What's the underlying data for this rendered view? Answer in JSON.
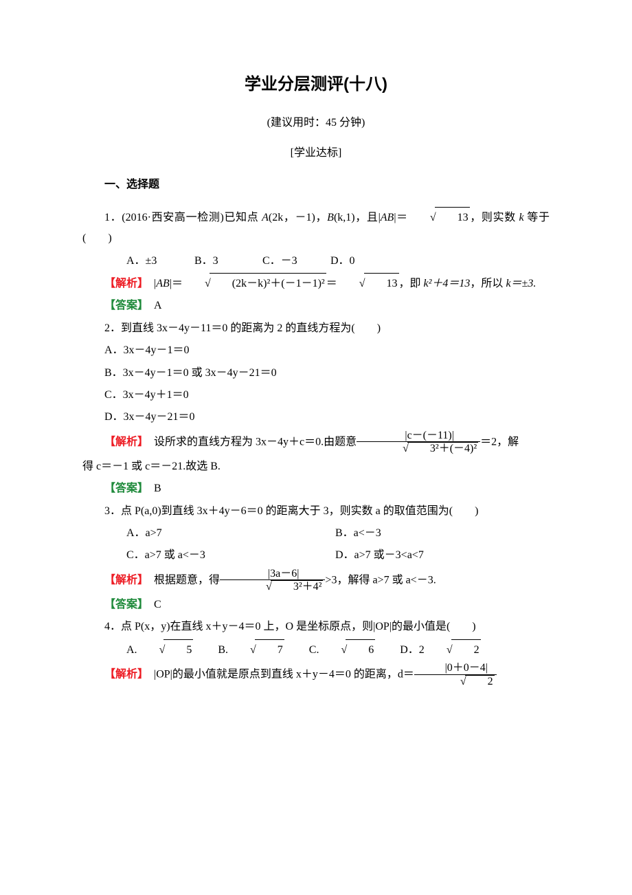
{
  "doc": {
    "title": "学业分层测评(十八)",
    "time_note": "(建议用时：45 分钟)",
    "section_bracket": "[学业达标]",
    "section_heading": "一、选择题",
    "colors": {
      "text": "#000000",
      "analyze": "#ed1c24",
      "answer": "#1f8a3b",
      "background": "#ffffff"
    },
    "labels": {
      "analyze": "【解析】",
      "answer": "【答案】"
    },
    "q1": {
      "stem_prefix": "1．(2016·西安高一检测)已知点 ",
      "pointA_label": "A",
      "pointA_coords": "(2k，－1)",
      "sep1": "，",
      "pointB_label": "B",
      "pointB_coords": "(k,1)",
      "sep2": "，且|",
      "AB": "AB",
      "after_ab": "|＝",
      "sqrt13": "13",
      "tail": "，则实数 ",
      "k": "k",
      "stem_suffix": " 等于(　　)",
      "optA": "A．±3",
      "optB": "B．3",
      "optC": "C．－3",
      "optD": "D．0",
      "analysis_pre": "　|",
      "analysis_mid1": "|＝",
      "rad_expr": "(2k－k)²＋(－1－1)²",
      "eq": "＝",
      "post_sqrt": "，即 ",
      "k2plus4": "k²＋4＝13",
      "so": "，所以 ",
      "keq": "k＝±3.",
      "answer": "　A"
    },
    "q2": {
      "stem": "2．到直线 3x－4y－11＝0 的距离为 2 的直线方程为(　　)",
      "optA": "A．3x－4y－1＝0",
      "optB": "B．3x－4y－1＝0 或 3x－4y－21＝0",
      "optC": "C．3x－4y＋1＝0",
      "optD": "D．3x－4y－21＝0",
      "ana_p1": "　设所求的直线方程为 3x－4y＋c＝0.由题意",
      "frac_num": "|c－(－11)|",
      "frac_den_rad": "3²＋(－4)²",
      "ana_p2": "＝2，解",
      "ana_line2": "得 c＝－1 或 c＝－21.故选 B.",
      "answer": "　B"
    },
    "q3": {
      "stem": "3．点 P(a,0)到直线 3x＋4y－6＝0 的距离大于 3，则实数 a 的取值范围为(　　)",
      "optA": "A．a>7",
      "optB": "B．a<－3",
      "optC": "C．a>7 或 a<－3",
      "optD": "D．a>7 或－3<a<7",
      "ana_p1": "　根据题意，得",
      "frac_num": "|3a－6|",
      "frac_den_rad": "3²＋4²",
      "ana_p2": ">3，解得 a>7 或 a<－3.",
      "answer": "　C"
    },
    "q4": {
      "stem": "4．点 P(x，y)在直线 x＋y－4＝0 上，O 是坐标原点，则|OP|的最小值是(　　)",
      "optA_pre": "A.",
      "optA_rad": "5",
      "optB_pre": "B.",
      "optB_rad": "7",
      "optC_pre": "C.",
      "optC_rad": "6",
      "optD_pre": "D．2",
      "optD_rad": "2",
      "ana_p1": "　|OP|的最小值就是原点到直线 x＋y－4＝0 的距离，d＝",
      "frac_num": "|0＋0－4|",
      "frac_den_rad": "2"
    }
  }
}
